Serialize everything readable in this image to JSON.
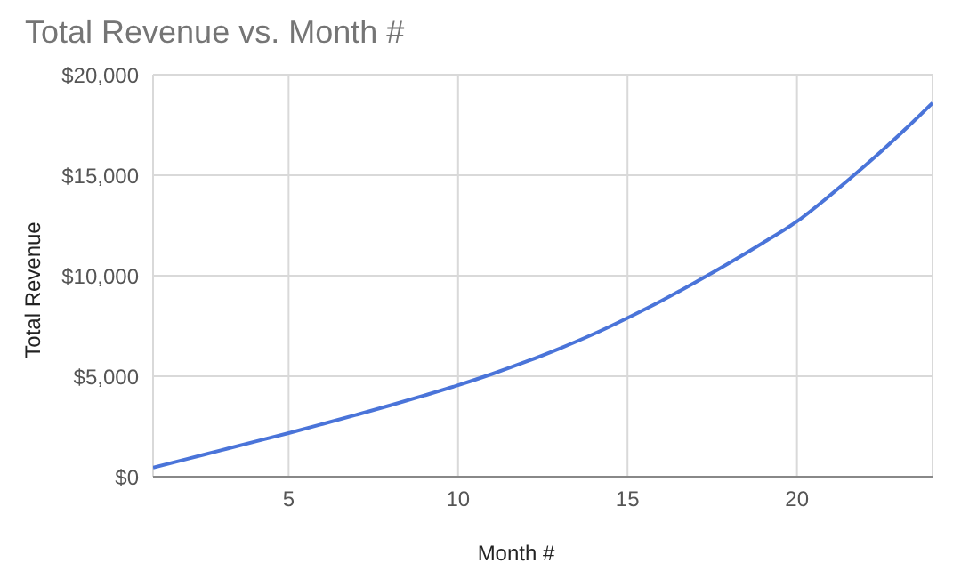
{
  "chart_data": {
    "type": "line",
    "title": "Total Revenue vs. Month #",
    "xlabel": "Month #",
    "ylabel": "Total Revenue",
    "x": [
      1,
      2,
      3,
      4,
      5,
      6,
      7,
      8,
      9,
      10,
      11,
      12,
      13,
      14,
      15,
      16,
      17,
      18,
      19,
      20,
      21,
      22,
      23,
      24
    ],
    "series": [
      {
        "color": "#4a74d9",
        "values": [
          450,
          880,
          1310,
          1740,
          2170,
          2620,
          3080,
          3550,
          4040,
          4550,
          5110,
          5720,
          6380,
          7100,
          7900,
          8750,
          9670,
          10630,
          11640,
          12700,
          14030,
          15460,
          16980,
          18600
        ]
      }
    ],
    "xlim": [
      1,
      24
    ],
    "xticks": [
      5,
      10,
      15,
      20
    ],
    "ylim": [
      0,
      20000
    ],
    "yticks": [
      {
        "value": 0,
        "label": "$0"
      },
      {
        "value": 5000,
        "label": "$5,000"
      },
      {
        "value": 10000,
        "label": "$10,000"
      },
      {
        "value": 15000,
        "label": "$15,000"
      },
      {
        "value": 20000,
        "label": "$20,000"
      }
    ],
    "grid": true,
    "marker": "none",
    "line_style": "solid"
  }
}
